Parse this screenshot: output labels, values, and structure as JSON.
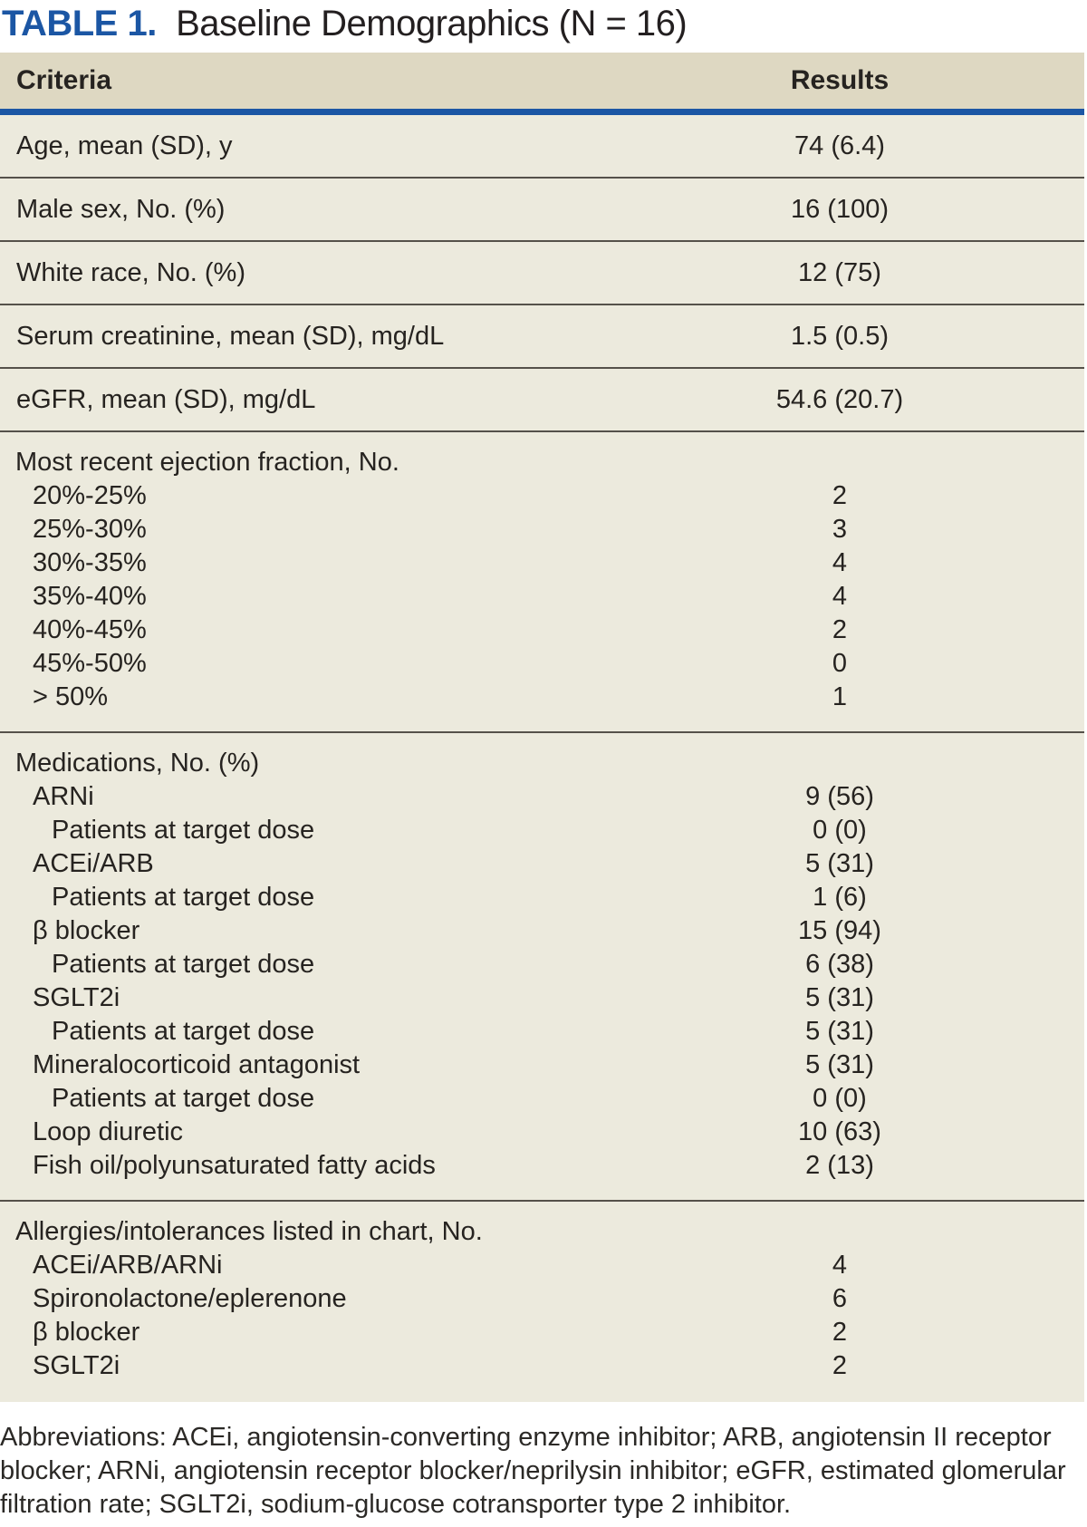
{
  "title": {
    "label": "TABLE 1.",
    "text": "Baseline Demographics (N = 16)"
  },
  "colors": {
    "accent_blue": "#1B56A4",
    "header_bg": "#DED8C2",
    "body_bg": "#ECEADD",
    "divider": "#55514A"
  },
  "table": {
    "columns": [
      "Criteria",
      "Results"
    ],
    "rows": [
      {
        "type": "simple",
        "label": "Age, mean (SD), y",
        "value": "74 (6.4)"
      },
      {
        "type": "simple",
        "label": "Male sex, No. (%)",
        "value": "16 (100)"
      },
      {
        "type": "simple",
        "label": "White race, No. (%)",
        "value": "12 (75)"
      },
      {
        "type": "simple",
        "label": "Serum creatinine, mean (SD), mg/dL",
        "value": "1.5 (0.5)"
      },
      {
        "type": "simple",
        "label": "eGFR, mean (SD), mg/dL",
        "value": "54.6 (20.7)"
      },
      {
        "type": "section",
        "label": "Most recent ejection fraction, No.",
        "items": [
          {
            "label": "20%-25%",
            "value": "2",
            "indent": 1
          },
          {
            "label": "25%-30%",
            "value": "3",
            "indent": 1
          },
          {
            "label": "30%-35%",
            "value": "4",
            "indent": 1
          },
          {
            "label": "35%-40%",
            "value": "4",
            "indent": 1
          },
          {
            "label": "40%-45%",
            "value": "2",
            "indent": 1
          },
          {
            "label": "45%-50%",
            "value": "0",
            "indent": 1
          },
          {
            "label": "> 50%",
            "value": "1",
            "indent": 1
          }
        ]
      },
      {
        "type": "section",
        "label": "Medications, No. (%)",
        "items": [
          {
            "label": "ARNi",
            "value": "9 (56)",
            "indent": 1
          },
          {
            "label": "Patients at target dose",
            "value": "0 (0)",
            "indent": 2
          },
          {
            "label": "ACEi/ARB",
            "value": "5 (31)",
            "indent": 1
          },
          {
            "label": "Patients at target dose",
            "value": "1 (6)",
            "indent": 2
          },
          {
            "label": "β blocker",
            "value": "15 (94)",
            "indent": 1
          },
          {
            "label": "Patients at target dose",
            "value": "6 (38)",
            "indent": 2
          },
          {
            "label": "SGLT2i",
            "value": "5 (31)",
            "indent": 1
          },
          {
            "label": "Patients at target dose",
            "value": "5 (31)",
            "indent": 2
          },
          {
            "label": "Mineralocorticoid antagonist",
            "value": "5 (31)",
            "indent": 1
          },
          {
            "label": "Patients at target dose",
            "value": "0 (0)",
            "indent": 2
          },
          {
            "label": "Loop diuretic",
            "value": "10 (63)",
            "indent": 1
          },
          {
            "label": "Fish oil/polyunsaturated fatty acids",
            "value": "2 (13)",
            "indent": 1
          }
        ]
      },
      {
        "type": "section",
        "label": "Allergies/intolerances listed in chart, No.",
        "items": [
          {
            "label": "ACEi/ARB/ARNi",
            "value": "4",
            "indent": 1
          },
          {
            "label": "Spironolactone/eplerenone",
            "value": "6",
            "indent": 1
          },
          {
            "label": "β blocker",
            "value": "2",
            "indent": 1
          },
          {
            "label": "SGLT2i",
            "value": "2",
            "indent": 1
          }
        ]
      }
    ]
  },
  "footnote": "Abbreviations: ACEi, angiotensin-converting enzyme inhibitor; ARB, angiotensin II receptor blocker; ARNi, angiotensin receptor blocker/neprilysin inhibitor; eGFR, estimated glomerular filtration rate; SGLT2i, sodium-glucose cotransporter type 2 inhibitor."
}
